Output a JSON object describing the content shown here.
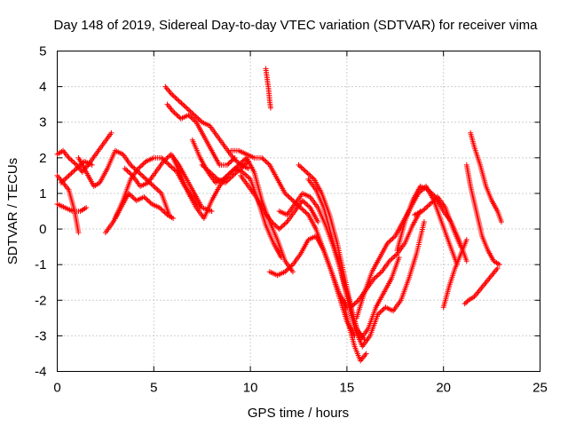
{
  "chart_data": {
    "type": "scatter",
    "title": "Day 148 of 2019, Sidereal Day-to-day VTEC variation (SDTVAR) for receiver vima",
    "xlabel": "GPS time / hours",
    "ylabel": "SDTVAR / TECUs",
    "xlim": [
      0,
      25
    ],
    "ylim": [
      -4,
      5
    ],
    "xticks": [
      "0",
      "5",
      "10",
      "15",
      "20",
      "25"
    ],
    "yticks": [
      "-4",
      "-3",
      "-2",
      "-1",
      "0",
      "1",
      "2",
      "3",
      "4",
      "5"
    ],
    "grid": true,
    "marker": "plus",
    "color": "#ff0000",
    "series": [
      {
        "x": [
          0.0,
          0.3,
          0.6,
          1.0,
          1.3,
          1.6,
          2.0,
          2.4,
          2.8
        ],
        "y": [
          2.1,
          2.2,
          2.0,
          1.8,
          1.6,
          1.8,
          2.1,
          2.4,
          2.7
        ]
      },
      {
        "x": [
          0.0,
          0.3,
          0.6,
          0.9,
          1.1
        ],
        "y": [
          1.5,
          1.3,
          1.1,
          0.5,
          -0.1
        ]
      },
      {
        "x": [
          0.0,
          0.4,
          0.8,
          1.2,
          1.5
        ],
        "y": [
          0.7,
          0.6,
          0.5,
          0.5,
          0.6
        ]
      },
      {
        "x": [
          0.2,
          0.6,
          1.0,
          1.4,
          1.8
        ],
        "y": [
          1.3,
          1.5,
          1.7,
          1.9,
          1.8
        ]
      },
      {
        "x": [
          1.1,
          1.5,
          1.9,
          2.2,
          2.6,
          3.0,
          3.4,
          3.8,
          4.2,
          4.6,
          5.0,
          5.4,
          5.8
        ],
        "y": [
          2.0,
          1.6,
          1.2,
          1.3,
          1.7,
          2.2,
          2.1,
          1.8,
          1.6,
          1.4,
          1.2,
          1.0,
          0.4
        ]
      },
      {
        "x": [
          2.5,
          2.9,
          3.3,
          3.7,
          4.1,
          4.5,
          4.9,
          5.3,
          5.7,
          6.0
        ],
        "y": [
          -0.1,
          0.2,
          0.6,
          1.0,
          0.8,
          0.9,
          0.7,
          0.6,
          0.4,
          0.3
        ]
      },
      {
        "x": [
          3.0,
          3.4,
          3.8,
          4.2,
          4.6,
          5.0,
          5.4,
          5.8,
          6.2,
          6.6,
          7.0,
          7.4
        ],
        "y": [
          0.3,
          0.8,
          1.4,
          1.7,
          1.9,
          2.0,
          2.0,
          1.8,
          1.6,
          1.2,
          0.9,
          0.6
        ]
      },
      {
        "x": [
          3.5,
          3.9,
          4.3,
          4.7,
          5.1,
          5.5,
          5.9,
          6.3,
          6.7,
          7.1,
          7.5,
          8.0
        ],
        "y": [
          1.7,
          1.5,
          1.2,
          1.3,
          1.6,
          1.9,
          2.1,
          1.8,
          1.4,
          1.0,
          0.6,
          0.5
        ]
      },
      {
        "x": [
          5.6,
          5.9,
          6.3,
          6.7,
          7.1,
          7.5,
          7.9,
          8.3,
          8.7,
          9.1,
          9.5,
          9.9
        ],
        "y": [
          4.0,
          3.8,
          3.6,
          3.4,
          3.2,
          3.0,
          2.9,
          2.6,
          2.3,
          2.0,
          1.8,
          1.7
        ]
      },
      {
        "x": [
          5.7,
          6.0,
          6.4,
          6.8,
          7.2,
          7.6,
          8.0,
          8.4,
          8.8,
          9.2
        ],
        "y": [
          3.5,
          3.3,
          3.1,
          3.2,
          3.0,
          2.6,
          2.2,
          1.8,
          1.8,
          2.0
        ]
      },
      {
        "x": [
          6.0,
          6.4,
          6.8,
          7.2,
          7.6,
          8.0,
          8.4,
          8.8,
          9.2,
          9.6,
          10.0,
          10.4,
          10.8,
          11.2,
          11.6
        ],
        "y": [
          2.0,
          1.5,
          1.0,
          0.6,
          0.3,
          0.8,
          1.2,
          1.5,
          1.7,
          1.6,
          1.4,
          0.8,
          0.1,
          -0.4,
          -0.8
        ]
      },
      {
        "x": [
          7.0,
          7.4,
          7.8,
          8.2,
          8.6,
          9.0,
          9.4,
          9.8,
          10.2,
          10.6,
          11.0,
          11.4,
          11.8,
          12.2
        ],
        "y": [
          2.5,
          2.0,
          1.6,
          1.3,
          1.4,
          1.6,
          1.8,
          2.0,
          1.6,
          0.8,
          0.2,
          -0.3,
          -0.9,
          -1.2
        ]
      },
      {
        "x": [
          7.5,
          7.9,
          8.3,
          8.7,
          9.1,
          9.5,
          9.9
        ],
        "y": [
          1.8,
          1.6,
          1.4,
          1.3,
          1.5,
          1.7,
          1.9
        ]
      },
      {
        "x": [
          9.0,
          9.4,
          9.8,
          10.2,
          10.6,
          11.0,
          11.4,
          11.8,
          12.2,
          12.6,
          13.0,
          13.4,
          13.8,
          14.2,
          14.6,
          15.0
        ],
        "y": [
          2.2,
          2.2,
          2.1,
          2.0,
          2.0,
          1.8,
          1.4,
          1.0,
          0.8,
          0.6,
          0.4,
          0.0,
          -0.6,
          -1.2,
          -1.8,
          -2.2
        ]
      },
      {
        "x": [
          9.5,
          9.9,
          10.3,
          10.7,
          11.1,
          11.5,
          11.9,
          12.3,
          12.7,
          13.1,
          13.5
        ],
        "y": [
          1.5,
          1.2,
          0.9,
          0.5,
          0.2,
          0.0,
          0.2,
          0.5,
          0.8,
          0.6,
          0.2
        ]
      },
      {
        "x": [
          10.8,
          10.85,
          10.9,
          10.95,
          11.0,
          11.05
        ],
        "y": [
          4.5,
          4.3,
          4.1,
          3.9,
          3.6,
          3.4
        ]
      },
      {
        "x": [
          11.0,
          11.4,
          11.8,
          12.2,
          12.6,
          13.0,
          13.4,
          13.8,
          14.2,
          14.6,
          15.0,
          15.4
        ],
        "y": [
          -1.2,
          -1.3,
          -1.2,
          -1.0,
          -0.7,
          -0.3,
          -0.2,
          -0.6,
          -1.2,
          -1.9,
          -2.6,
          -3.0
        ]
      },
      {
        "x": [
          11.5,
          11.9,
          12.3,
          12.7,
          13.1,
          13.5,
          13.9,
          14.3,
          14.7,
          15.1,
          15.5,
          15.9
        ],
        "y": [
          0.5,
          0.4,
          0.7,
          1.0,
          0.9,
          0.6,
          0.1,
          -0.5,
          -1.2,
          -2.0,
          -2.8,
          -3.1
        ]
      },
      {
        "x": [
          12.5,
          12.9,
          13.3,
          13.7,
          14.1,
          14.5,
          14.9,
          15.3,
          15.7,
          16.1,
          16.5,
          16.9,
          17.3,
          17.7
        ],
        "y": [
          1.8,
          1.6,
          1.4,
          1.0,
          0.4,
          -0.4,
          -1.4,
          -2.4,
          -3.1,
          -2.8,
          -2.2,
          -1.8,
          -1.4,
          -0.8
        ]
      },
      {
        "x": [
          13.0,
          13.4,
          13.8,
          14.2,
          14.6,
          15.0,
          15.4,
          15.8,
          16.2,
          16.6,
          17.0,
          17.4,
          17.8,
          18.2,
          18.6,
          19.0
        ],
        "y": [
          1.4,
          1.1,
          0.6,
          -0.2,
          -1.0,
          -1.9,
          -2.8,
          -3.3,
          -3.0,
          -2.4,
          -2.2,
          -2.3,
          -2.0,
          -1.4,
          -0.7,
          0.2
        ]
      },
      {
        "x": [
          14.8,
          15.1,
          15.4,
          15.7,
          16.0
        ],
        "y": [
          -2.0,
          -2.7,
          -3.3,
          -3.7,
          -3.5
        ]
      },
      {
        "x": [
          15.5,
          15.9,
          16.3,
          16.7,
          17.1,
          17.5,
          17.9,
          18.3,
          18.7,
          19.1,
          19.5,
          19.9,
          20.3,
          20.7
        ],
        "y": [
          -2.5,
          -1.8,
          -1.2,
          -0.8,
          -0.4,
          -0.2,
          0.2,
          0.6,
          1.0,
          1.2,
          0.8,
          0.2,
          -0.4,
          -1.0
        ]
      },
      {
        "x": [
          15.2,
          15.6,
          16.0,
          16.4,
          16.8,
          17.2,
          17.6,
          18.0,
          18.4,
          18.8
        ],
        "y": [
          -2.2,
          -2.0,
          -1.7,
          -1.4,
          -1.2,
          -0.9,
          -0.7,
          -0.4,
          0.1,
          0.5
        ]
      },
      {
        "x": [
          17.6,
          18.0,
          18.4,
          18.8,
          19.2,
          19.6,
          20.0,
          20.4,
          20.8,
          21.2
        ],
        "y": [
          -0.6,
          0.2,
          0.8,
          1.2,
          1.1,
          0.9,
          0.5,
          0.2,
          -0.3,
          -0.9
        ]
      },
      {
        "x": [
          18.5,
          18.9,
          19.3,
          19.7,
          20.1,
          20.5,
          20.9
        ],
        "y": [
          0.4,
          0.5,
          0.7,
          0.9,
          0.6,
          0.0,
          -0.5
        ]
      },
      {
        "x": [
          20.0,
          20.3,
          20.6,
          20.9,
          21.2
        ],
        "y": [
          -2.2,
          -1.6,
          -1.1,
          -0.7,
          -0.3
        ]
      },
      {
        "x": [
          21.1,
          21.3,
          21.6,
          21.9,
          22.2,
          22.5,
          22.8
        ],
        "y": [
          -2.1,
          -2.0,
          -1.9,
          -1.7,
          -1.5,
          -1.3,
          -1.1
        ]
      },
      {
        "x": [
          21.4,
          21.6,
          21.9,
          22.2,
          22.5,
          22.8,
          23.0
        ],
        "y": [
          2.7,
          2.3,
          1.8,
          1.2,
          0.8,
          0.5,
          0.2
        ]
      },
      {
        "x": [
          21.2,
          21.4,
          21.7,
          22.0,
          22.3,
          22.6,
          22.9
        ],
        "y": [
          1.8,
          1.2,
          0.5,
          -0.2,
          -0.6,
          -0.9,
          -1.0
        ]
      }
    ]
  }
}
